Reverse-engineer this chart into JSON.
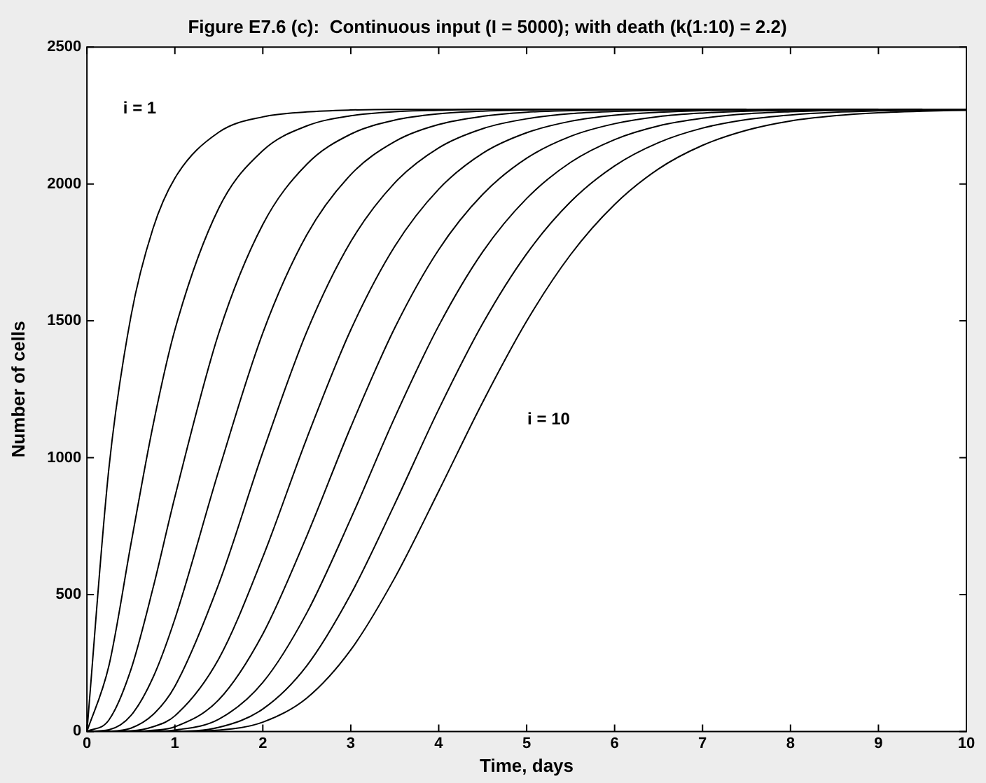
{
  "chart_data": {
    "type": "line",
    "title": "Figure E7.6 (c):  Continuous input (I = 5000); with death (k(1:10) = 2.2)",
    "xlabel": "Time, days",
    "ylabel": "Number of cells",
    "series": [
      {
        "color": "#000000",
        "x": [
          0,
          0.25,
          0.5,
          0.75,
          1,
          1.5,
          2,
          2.5,
          3,
          3.5,
          4,
          4.5,
          5,
          5.5
        ],
        "values": [
          0,
          962,
          1516,
          1836,
          2021,
          2189,
          2245,
          2263,
          2270,
          2272,
          2272,
          2273,
          2273,
          2273
        ]
      },
      {
        "color": "#000000",
        "x": [
          0,
          0.25,
          0.5,
          0.75,
          1,
          1.5,
          2,
          2.5,
          3,
          3.5,
          4,
          4.5,
          5,
          5.5,
          6,
          6.5
        ],
        "values": [
          0,
          240,
          684,
          1116,
          1467,
          1912,
          2122,
          2212,
          2249,
          2264,
          2269,
          2272,
          2272,
          2273,
          2273,
          2273
        ]
      },
      {
        "color": "#000000",
        "x": [
          0,
          0.25,
          0.5,
          0.75,
          1,
          1.5,
          2,
          2.5,
          3,
          3.5,
          4,
          4.5,
          5,
          5.5,
          6,
          6.5,
          7
        ],
        "values": [
          0,
          42,
          226,
          522,
          857,
          1456,
          1852,
          2072,
          2182,
          2233,
          2256,
          2266,
          2270,
          2272,
          2272,
          2273,
          2273
        ]
      },
      {
        "color": "#000000",
        "x": [
          0,
          0.25,
          0.5,
          0.75,
          1,
          1.5,
          2,
          2.5,
          3,
          3.5,
          4,
          4.5,
          5,
          5.5,
          6,
          6.5,
          7,
          7.5
        ],
        "values": [
          0,
          6,
          58,
          196,
          411,
          954,
          1456,
          1814,
          2034,
          2155,
          2217,
          2247,
          2262,
          2268,
          2271,
          2272,
          2273,
          2273
        ]
      },
      {
        "color": "#000000",
        "x": [
          0,
          0.25,
          0.5,
          0.75,
          1,
          1.5,
          2,
          2.5,
          3,
          3.5,
          4,
          4.5,
          5,
          5.5,
          6,
          6.5,
          7,
          7.5,
          8,
          8.5
        ],
        "values": [
          0,
          1,
          12,
          61,
          165,
          540,
          1020,
          1460,
          1789,
          2004,
          2132,
          2202,
          2238,
          2257,
          2265,
          2269,
          2271,
          2272,
          2273,
          2273
        ]
      },
      {
        "color": "#000000",
        "x": [
          0,
          0.25,
          0.5,
          0.75,
          1,
          1.5,
          2,
          2.5,
          3,
          3.5,
          4,
          4.5,
          5,
          5.5,
          6,
          6.5,
          7,
          7.5,
          8,
          8.5,
          9
        ],
        "values": [
          0,
          0,
          2,
          17,
          57,
          266,
          637,
          1071,
          1467,
          1772,
          1981,
          2112,
          2187,
          2229,
          2251,
          2262,
          2268,
          2270,
          2272,
          2273,
          2273
        ]
      },
      {
        "color": "#000000",
        "x": [
          0.25,
          0.5,
          0.75,
          1,
          1.5,
          2,
          2.5,
          3,
          3.5,
          4,
          4.5,
          5,
          5.5,
          6,
          6.5,
          7,
          7.5,
          8,
          8.5,
          9,
          9.5
        ],
        "values": [
          0,
          0,
          4,
          17,
          116,
          356,
          714,
          1112,
          1474,
          1760,
          1962,
          2094,
          2174,
          2220,
          2246,
          2259,
          2266,
          2269,
          2271,
          2272,
          2273
        ]
      },
      {
        "color": "#000000",
        "x": [
          0.5,
          0.75,
          1,
          1.5,
          2,
          2.5,
          3,
          3.5,
          4,
          4.5,
          5,
          5.5,
          6,
          6.5,
          7,
          7.5,
          8,
          8.5,
          9,
          9.5,
          10
        ],
        "values": [
          0,
          1,
          5,
          45,
          179,
          433,
          777,
          1147,
          1482,
          1752,
          1947,
          2079,
          2162,
          2212,
          2240,
          2256,
          2264,
          2269,
          2271,
          2272,
          2272
        ]
      },
      {
        "color": "#000000",
        "x": [
          0.75,
          1,
          1.5,
          2,
          2.5,
          3,
          3.5,
          4,
          4.5,
          5,
          5.5,
          6,
          6.5,
          7,
          7.5,
          8,
          8.5,
          9,
          9.5,
          10
        ],
        "values": [
          1,
          1,
          15,
          82,
          240,
          501,
          831,
          1177,
          1490,
          1745,
          1935,
          2066,
          2151,
          2204,
          2235,
          2252,
          2262,
          2267,
          2270,
          2271
        ]
      },
      {
        "color": "#000000",
        "x": [
          1,
          1.5,
          2,
          2.5,
          3,
          3.5,
          4,
          4.5,
          5,
          5.5,
          6,
          6.5,
          7,
          7.5,
          8,
          8.5,
          9,
          9.5,
          10
        ],
        "values": [
          0,
          5,
          34,
          122,
          298,
          561,
          878,
          1203,
          1499,
          1742,
          1925,
          2055,
          2141,
          2196,
          2230,
          2249,
          2260,
          2266,
          2269
        ]
      }
    ],
    "xlim": [
      0,
      10
    ],
    "xticks": [
      0,
      1,
      2,
      3,
      4,
      5,
      6,
      7,
      8,
      9,
      10
    ],
    "ylim": [
      0,
      2500
    ],
    "yticks": [
      0,
      500,
      1000,
      1500,
      2000,
      2500
    ],
    "annotations": [
      "i = 1",
      "i = 10"
    ]
  }
}
